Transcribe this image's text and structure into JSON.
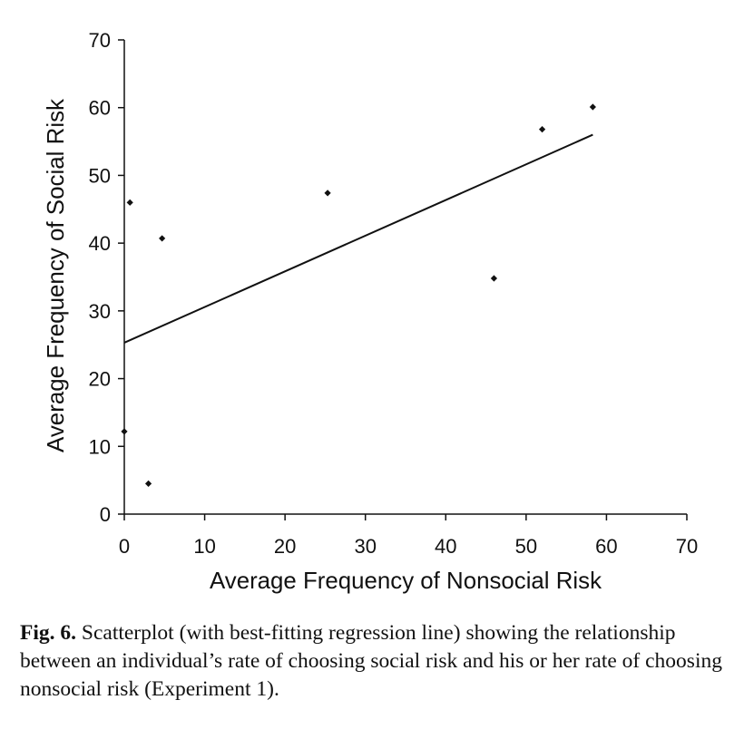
{
  "chart_data": {
    "type": "scatter",
    "xlabel": "Average Frequency of Nonsocial Risk",
    "ylabel": "Average Frequency of Social Risk",
    "xlim": [
      0,
      70
    ],
    "ylim": [
      0,
      70
    ],
    "x_ticks": [
      0,
      10,
      20,
      30,
      40,
      50,
      60,
      70
    ],
    "y_ticks": [
      0,
      10,
      20,
      30,
      40,
      50,
      60,
      70
    ],
    "grid": false,
    "legend": "none",
    "points": [
      {
        "x": 0.0,
        "y": 12.2
      },
      {
        "x": 0.7,
        "y": 46.0
      },
      {
        "x": 3.0,
        "y": 4.5
      },
      {
        "x": 4.7,
        "y": 40.7
      },
      {
        "x": 25.3,
        "y": 47.4
      },
      {
        "x": 46.0,
        "y": 34.8
      },
      {
        "x": 52.0,
        "y": 56.8
      },
      {
        "x": 58.3,
        "y": 60.1
      }
    ],
    "regression_line": {
      "x_start": 0,
      "y_start": 25.3,
      "x_end": 58.3,
      "y_end": 56.0
    },
    "marker_color": "#111111",
    "line_color": "#111111"
  },
  "caption": {
    "label": "Fig. 6.",
    "text": " Scatterplot (with best-fitting regression line) showing the relationship between an individual’s rate of choosing social risk and his or her rate of choosing nonsocial risk (Experiment 1)."
  }
}
